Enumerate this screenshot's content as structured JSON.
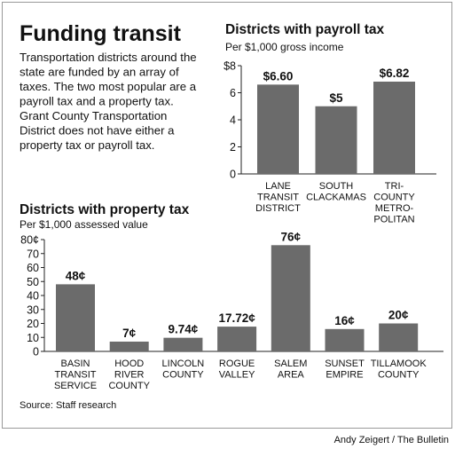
{
  "title": "Funding transit",
  "body": [
    "Transportation districts around the",
    "state are funded by an array of",
    "taxes. The two most popular are a",
    "payroll tax and a property tax.",
    "Grant County Transportation",
    "District does not have either a",
    "property tax or payroll tax."
  ],
  "source": "Source: Staff research",
  "credit": "Andy Zeigert / The Bulletin",
  "chart_data": [
    {
      "type": "bar",
      "title": "Districts with payroll tax",
      "subtitle": "Per $1,000 gross income",
      "categories": [
        [
          "LANE",
          "TRANSIT",
          "DISTRICT"
        ],
        [
          "SOUTH",
          "CLACKAMAS"
        ],
        [
          "TRI-",
          "COUNTY",
          "METRO-",
          "POLITAN"
        ]
      ],
      "values": [
        6.6,
        5,
        6.82
      ],
      "value_labels": [
        "$6.60",
        "$5",
        "$6.82"
      ],
      "color": "#6b6b6b",
      "ylim": [
        0,
        8
      ],
      "yticks": [
        0,
        2,
        4,
        6,
        {
          "value": 8,
          "label": "$8"
        }
      ]
    },
    {
      "type": "bar",
      "title": "Districts with property tax",
      "subtitle": "Per $1,000 assessed value",
      "categories": [
        [
          "BASIN",
          "TRANSIT",
          "SERVICE"
        ],
        [
          "HOOD",
          "RIVER",
          "COUNTY"
        ],
        [
          "LINCOLN",
          "COUNTY"
        ],
        [
          "ROGUE",
          "VALLEY"
        ],
        [
          "SALEM",
          "AREA"
        ],
        [
          "SUNSET",
          "EMPIRE"
        ],
        [
          "TILLAMOOK",
          "COUNTY"
        ]
      ],
      "values": [
        48,
        7,
        9.74,
        17.72,
        76,
        16,
        20
      ],
      "value_labels": [
        "48¢",
        "7¢",
        "9.74¢",
        "17.72¢",
        "76¢",
        "16¢",
        "20¢"
      ],
      "color": "#6b6b6b",
      "ylim": [
        0,
        80
      ],
      "yticks": [
        0,
        10,
        20,
        30,
        40,
        50,
        60,
        70,
        {
          "value": 80,
          "label": "80¢"
        }
      ]
    }
  ]
}
